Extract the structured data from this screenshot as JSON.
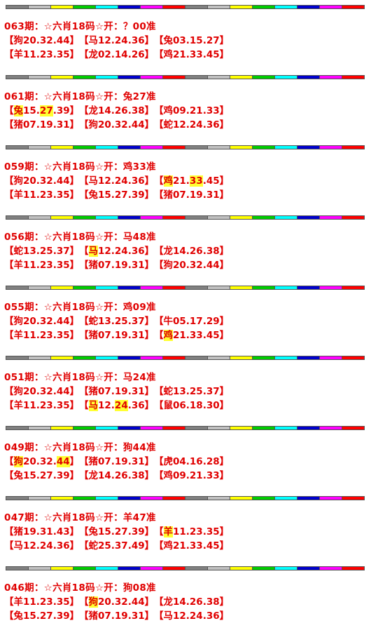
{
  "strip_colors": [
    "#808080",
    "#c0c0c0",
    "#ffff00",
    "#00cc00",
    "#00ffff",
    "#0000cc",
    "#ff00ff",
    "#ff0000",
    "#808080",
    "#c0c0c0",
    "#ffff00",
    "#00cc00",
    "#00ffff",
    "#0000cc",
    "#ff00ff",
    "#ff0000"
  ],
  "highlight_color": "#ffff33",
  "text_color": "#e00000",
  "blocks": [
    {
      "title": "063期：☆六肖18码☆开：？00准",
      "rows": [
        [
          [
            "【",
            "狗20.32.44",
            "】"
          ],
          [
            "【",
            "马12.24.36",
            "】"
          ],
          [
            "【",
            "兔03.15.27",
            "】"
          ]
        ],
        [
          [
            "【",
            "羊11.23.35",
            "】"
          ],
          [
            "【",
            "龙02.14.26",
            "】"
          ],
          [
            "【",
            "鸡21.33.45",
            "】"
          ]
        ]
      ]
    },
    {
      "title": "061期：☆六肖18码☆开：兔27准",
      "rows": [
        [
          [
            "【",
            "兔",
            "15.",
            "27",
            ".39】"
          ],
          [
            "【",
            "龙14.26.38",
            "】"
          ],
          [
            "【",
            "鸡09.21.33",
            "】"
          ]
        ],
        [
          [
            "【",
            "猪07.19.31",
            "】"
          ],
          [
            "【",
            "狗20.32.44",
            "】"
          ],
          [
            "【",
            "蛇12.24.36",
            "】"
          ]
        ]
      ]
    },
    {
      "title": "059期：☆六肖18码☆开：鸡33准",
      "rows": [
        [
          [
            "【",
            "狗20.32.44",
            "】"
          ],
          [
            "【",
            "马12.24.36",
            "】"
          ],
          [
            "【",
            "鸡",
            "21.",
            "33",
            ".45】"
          ]
        ],
        [
          [
            "【",
            "羊11.23.35",
            "】"
          ],
          [
            "【",
            "兔15.27.39",
            "】"
          ],
          [
            "【",
            "猪07.19.31",
            "】"
          ]
        ]
      ]
    },
    {
      "title": "056期：☆六肖18码☆开：马48准",
      "rows": [
        [
          [
            "【",
            "蛇13.25.37",
            "】"
          ],
          [
            "【",
            "马",
            "12.24.36】"
          ],
          [
            "【",
            "龙14.26.38",
            "】"
          ]
        ],
        [
          [
            "【",
            "羊11.23.35",
            "】"
          ],
          [
            "【",
            "猪07.19.31",
            "】"
          ],
          [
            "【",
            "狗20.32.44",
            "】"
          ]
        ]
      ]
    },
    {
      "title": "055期：☆六肖18码☆开：鸡09准",
      "rows": [
        [
          [
            "【",
            "狗20.32.44",
            "】"
          ],
          [
            "【",
            "蛇13.25.37",
            "】"
          ],
          [
            "【",
            "牛05.17.29",
            "】"
          ]
        ],
        [
          [
            "【",
            "羊11.23.35",
            "】"
          ],
          [
            "【",
            "猪07.19.31",
            "】"
          ],
          [
            "【",
            "鸡",
            "21.33.45】"
          ]
        ]
      ]
    },
    {
      "title": "051期：☆六肖18码☆开：马24准",
      "rows": [
        [
          [
            "【",
            "狗20.32.44",
            "】"
          ],
          [
            "【",
            "猪07.19.31",
            "】"
          ],
          [
            "【",
            "蛇13.25.37",
            "】"
          ]
        ],
        [
          [
            "【",
            "羊11.23.35",
            "】"
          ],
          [
            "【",
            "马",
            "12.",
            "24",
            ".36】"
          ],
          [
            "【",
            "鼠06.18.30",
            "】"
          ]
        ]
      ]
    },
    {
      "title": "049期：☆六肖18码☆开：狗44准",
      "rows": [
        [
          [
            "【",
            "狗",
            "20.32.",
            "44",
            "】"
          ],
          [
            "【",
            "猪07.19.31",
            "】"
          ],
          [
            "【",
            "虎04.16.28",
            "】"
          ]
        ],
        [
          [
            "【",
            "兔15.27.39",
            "】"
          ],
          [
            "【",
            "龙14.26.38",
            "】"
          ],
          [
            "【",
            "鸡09.21.33",
            "】"
          ]
        ]
      ]
    },
    {
      "title": "047期：☆六肖18码☆开：羊47准",
      "rows": [
        [
          [
            "【",
            "猪19.31.43",
            "】"
          ],
          [
            "【",
            "兔15.27.39",
            "】"
          ],
          [
            "【",
            "羊",
            "11.23.35】"
          ]
        ],
        [
          [
            "【",
            "马12.24.36",
            "】"
          ],
          [
            "【",
            "蛇25.37.49",
            "】"
          ],
          [
            "【",
            "鸡21.33.45",
            "】"
          ]
        ]
      ]
    },
    {
      "title": "046期：☆六肖18码☆开：狗08准",
      "rows": [
        [
          [
            "【",
            "羊11.23.35",
            "】"
          ],
          [
            "【",
            "狗",
            "20.32.44】"
          ],
          [
            "【",
            "龙14.26.38",
            "】"
          ]
        ],
        [
          [
            "【",
            "兔15.27.39",
            "】"
          ],
          [
            "【",
            "猪07.19.31",
            "】"
          ],
          [
            "【",
            "马12.24.36",
            "】"
          ]
        ]
      ]
    }
  ]
}
